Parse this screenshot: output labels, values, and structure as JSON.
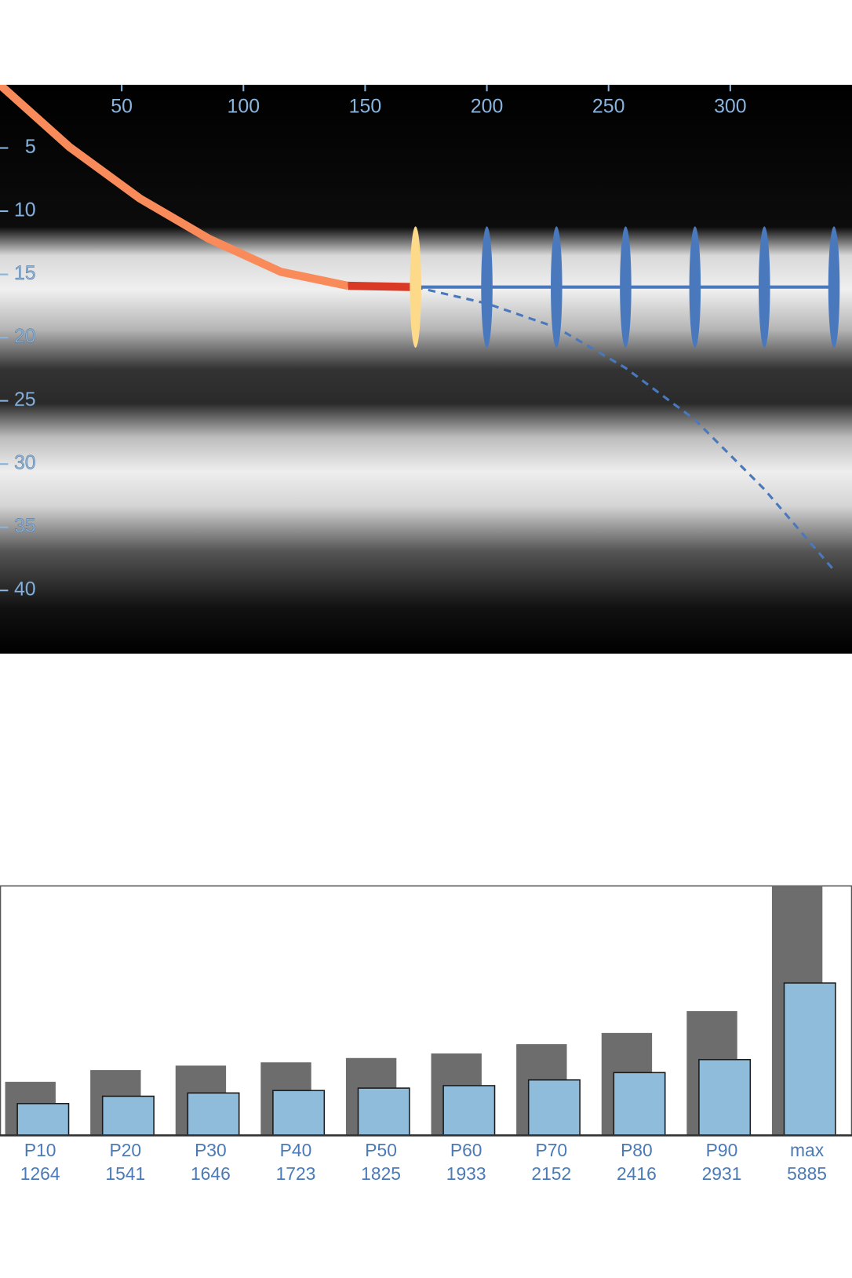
{
  "chart_data": [
    {
      "type": "line",
      "xlim": [
        0,
        350
      ],
      "ylim": [
        0,
        45
      ],
      "y_inverted": true,
      "x_axis_position": "top",
      "xticks": [
        50,
        100,
        150,
        200,
        250,
        300
      ],
      "yticks": [
        5,
        10,
        15,
        20,
        25,
        30,
        35,
        40
      ],
      "series": [
        {
          "color": "#f98b5a",
          "line_style": "thick",
          "x": [
            0,
            28.4,
            57.5,
            86,
            115.4,
            142.9
          ],
          "values": [
            0,
            4.9,
            9,
            12.2,
            14.8,
            15.9
          ]
        },
        {
          "color": "#d93a26",
          "line_style": "thick",
          "x": [
            142.9,
            170.7
          ],
          "values": [
            15.9,
            16
          ]
        },
        {
          "color": "#4a78bd",
          "line_style": "solid",
          "x": [
            170.7,
            342.6
          ],
          "values": [
            16,
            16
          ]
        },
        {
          "color": "#4a78bd",
          "line_style": "dashed",
          "x": [
            170.7,
            200,
            228.6,
            257,
            285.5,
            314,
            342.6
          ],
          "values": [
            16,
            17.3,
            19.2,
            22.4,
            26.5,
            32,
            38.4
          ]
        },
        {
          "color": "#fdd98a",
          "marker": "ellipse",
          "x": [
            170.7
          ],
          "values": [
            16
          ],
          "errors": [
            4.8
          ]
        },
        {
          "color": "#4a78bd",
          "marker": "ellipse",
          "x": [
            200,
            228.6,
            257,
            285.5,
            314,
            342.6
          ],
          "values": [
            16,
            16,
            16,
            16,
            16,
            16
          ],
          "errors": [
            4.8,
            4.8,
            4.8,
            4.8,
            4.8,
            4.8
          ]
        }
      ]
    },
    {
      "type": "bar",
      "categories": [
        "P10",
        "P20",
        "P30",
        "P40",
        "P50",
        "P60",
        "P70",
        "P80",
        "P90",
        "max"
      ],
      "ylim": [
        0,
        5885
      ],
      "series": [
        {
          "color": "#6d6d6d",
          "values": [
            1264,
            1541,
            1646,
            1723,
            1825,
            1933,
            2152,
            2416,
            2931,
            5885
          ]
        },
        {
          "color": "#8fbcdb",
          "values": [
            750,
            923,
            1000,
            1058,
            1115,
            1173,
            1308,
            1481,
            1788,
            3596
          ]
        }
      ]
    }
  ]
}
